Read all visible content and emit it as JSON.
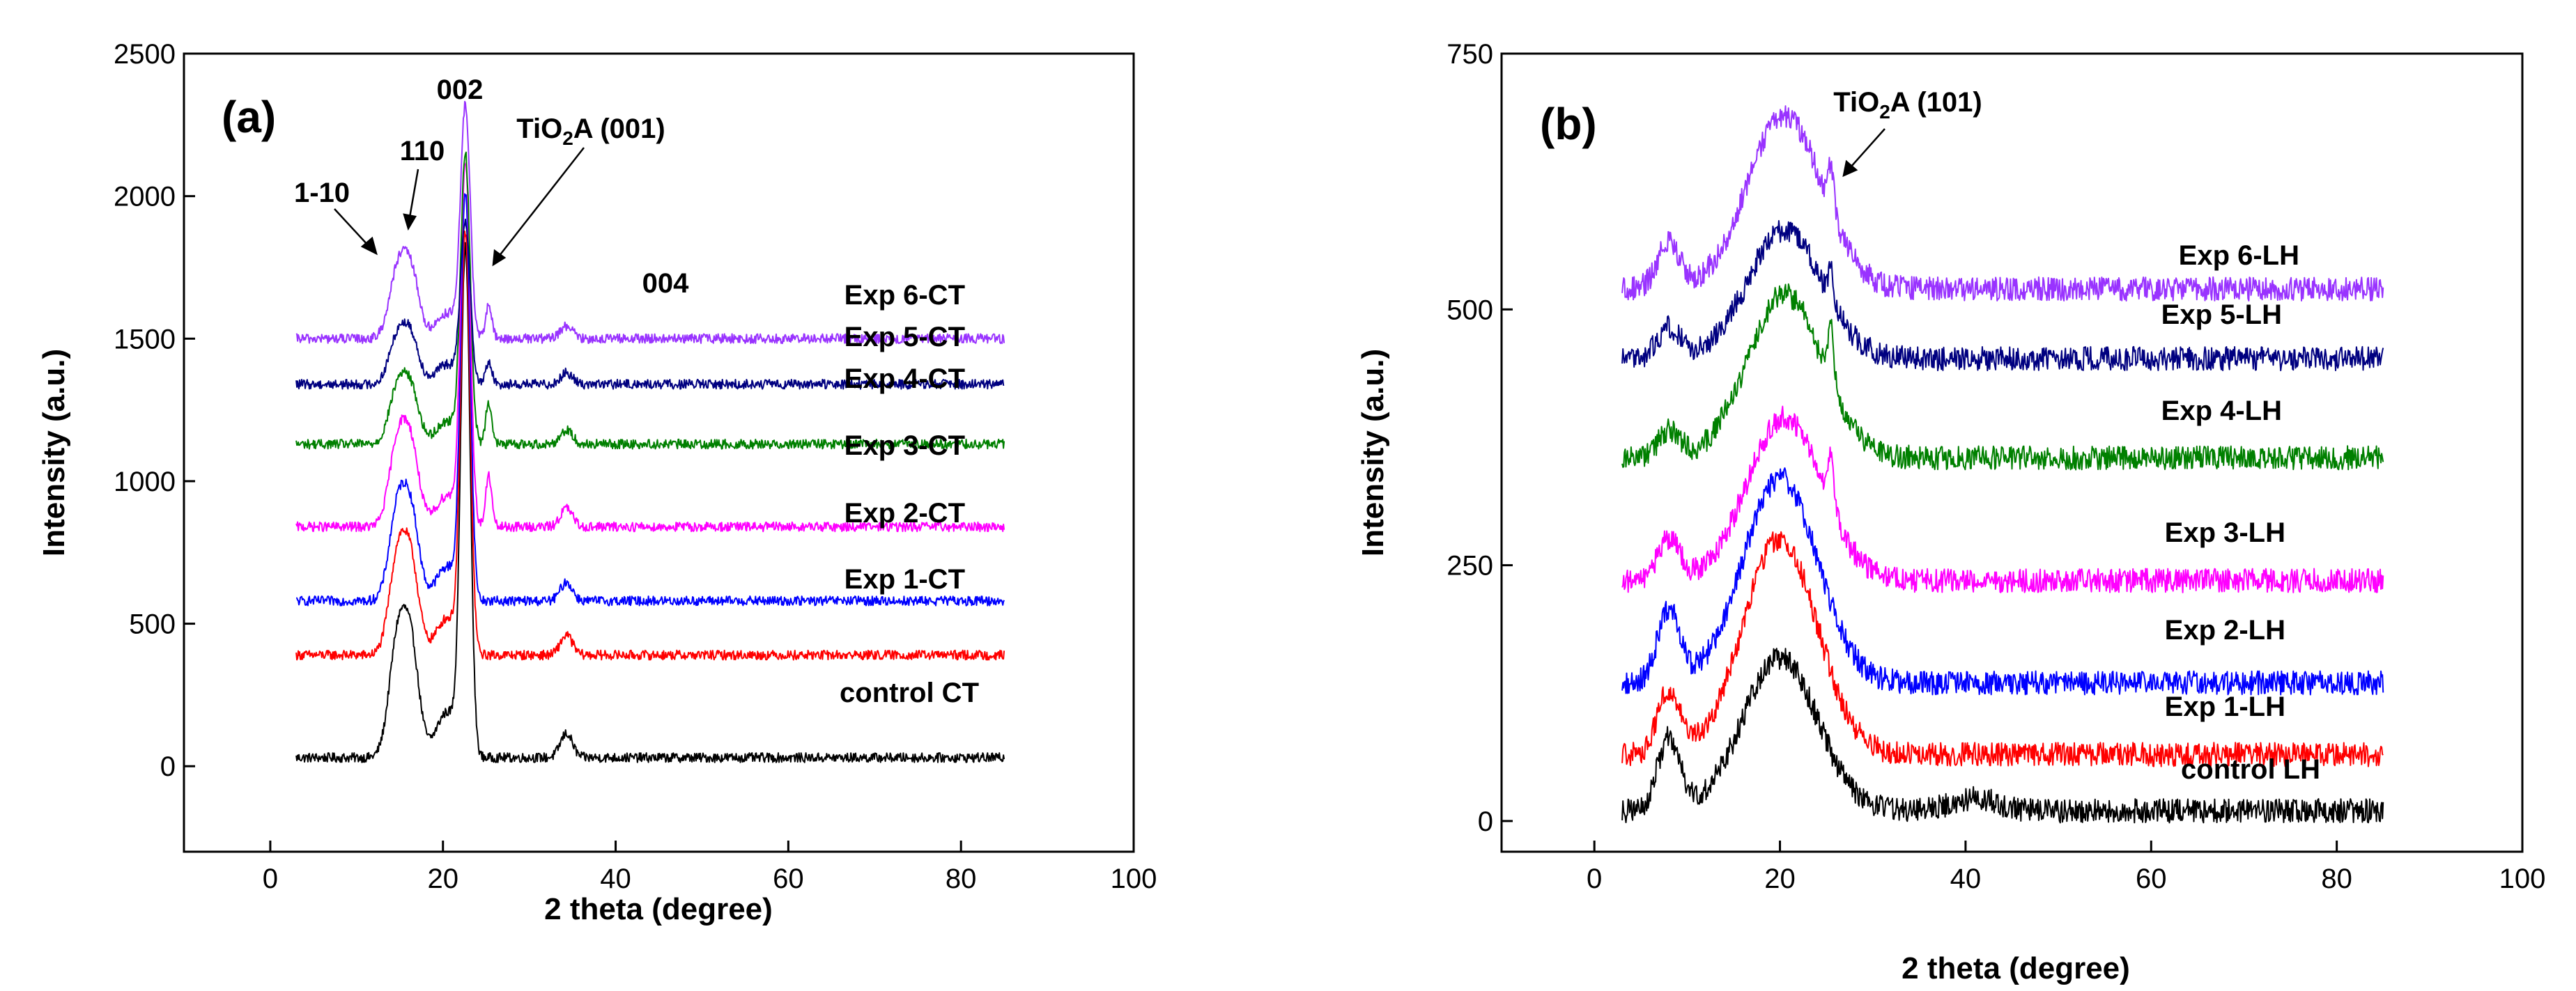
{
  "chart_data": [
    {
      "type": "line",
      "panel": "(a)",
      "xlabel": "2 theta (degree)",
      "ylabel": "Intensity (a.u.)",
      "xlim": [
        -10,
        100
      ],
      "ylim": [
        -300,
        2500
      ],
      "xticks": [
        0,
        20,
        40,
        60,
        80,
        100
      ],
      "yticks": [
        0,
        500,
        1000,
        1500,
        2000,
        2500
      ],
      "series": [
        {
          "name": "control CT",
          "baseline": 30,
          "color": "#000000",
          "peaks": [
            [
              14.8,
              1.0,
              420
            ],
            [
              16.4,
              0.9,
              330
            ],
            [
              20.5,
              1.3,
              160
            ],
            [
              22.6,
              0.55,
              1750
            ],
            [
              34.3,
              0.7,
              85
            ]
          ]
        },
        {
          "name": "Exp 1-CT",
          "baseline": 390,
          "color": "#ff0000",
          "peaks": [
            [
              14.8,
              1.0,
              350
            ],
            [
              16.4,
              0.9,
              270
            ],
            [
              20.5,
              1.3,
              130
            ],
            [
              22.6,
              0.55,
              1450
            ],
            [
              34.3,
              0.7,
              70
            ]
          ]
        },
        {
          "name": "Exp 2-CT",
          "baseline": 580,
          "color": "#0000ff",
          "peaks": [
            [
              14.8,
              1.0,
              330
            ],
            [
              16.4,
              0.9,
              260
            ],
            [
              20.5,
              1.3,
              120
            ],
            [
              22.6,
              0.55,
              1400
            ],
            [
              34.3,
              0.7,
              65
            ]
          ]
        },
        {
          "name": "Exp 3-CT",
          "baseline": 840,
          "color": "#ff00ff",
          "peaks": [
            [
              14.8,
              1.0,
              300
            ],
            [
              16.4,
              0.9,
              240
            ],
            [
              20.5,
              1.3,
              110
            ],
            [
              22.6,
              0.55,
              1250
            ],
            [
              25.3,
              0.35,
              180
            ],
            [
              34.3,
              0.7,
              65
            ]
          ]
        },
        {
          "name": "Exp 4-CT",
          "baseline": 1130,
          "color": "#008000",
          "peaks": [
            [
              14.8,
              1.0,
              200
            ],
            [
              16.4,
              0.9,
              160
            ],
            [
              20.5,
              1.3,
              80
            ],
            [
              22.6,
              0.55,
              1000
            ],
            [
              25.3,
              0.35,
              150
            ],
            [
              34.3,
              0.7,
              50
            ]
          ]
        },
        {
          "name": "Exp 5-CT",
          "baseline": 1340,
          "color": "#000080",
          "peaks": [
            [
              14.8,
              1.0,
              170
            ],
            [
              16.4,
              0.9,
              140
            ],
            [
              20.5,
              1.3,
              70
            ],
            [
              22.6,
              0.55,
              560
            ],
            [
              25.3,
              0.35,
              80
            ],
            [
              34.3,
              0.7,
              40
            ]
          ]
        },
        {
          "name": "Exp 6-CT",
          "baseline": 1500,
          "color": "#9933ff",
          "peaks": [
            [
              14.8,
              1.0,
              240
            ],
            [
              16.4,
              0.9,
              200
            ],
            [
              20.5,
              1.3,
              90
            ],
            [
              22.6,
              0.55,
              800
            ],
            [
              25.3,
              0.35,
              120
            ],
            [
              34.3,
              0.7,
              45
            ]
          ]
        }
      ],
      "annotations": [
        "1-10",
        "110",
        "002",
        "TiO",
        "2",
        "A (001)",
        "004"
      ]
    },
    {
      "type": "line",
      "panel": "(b)",
      "xlabel": "2 theta (degree)",
      "ylabel": "Intensity (a.u.)",
      "xlim": [
        -10,
        100
      ],
      "ylim": [
        -30,
        750
      ],
      "xticks": [
        0,
        20,
        40,
        60,
        80,
        100
      ],
      "yticks": [
        0,
        250,
        500,
        750
      ],
      "series": [
        {
          "name": "control LH",
          "baseline": 10,
          "color": "#000000",
          "peaks": [
            [
              8.0,
              1.2,
              70
            ],
            [
              20.0,
              4.0,
              150
            ],
            [
              41.0,
              2.5,
              12
            ]
          ]
        },
        {
          "name": "Exp 1-LH",
          "baseline": 65,
          "color": "#ff0000",
          "peaks": [
            [
              8.0,
              1.2,
              60
            ],
            [
              20.0,
              4.0,
              210
            ]
          ]
        },
        {
          "name": "Exp 2-LH",
          "baseline": 135,
          "color": "#0000ff",
          "peaks": [
            [
              8.0,
              1.2,
              70
            ],
            [
              20.0,
              4.0,
              200
            ]
          ]
        },
        {
          "name": "Exp 3-LH",
          "baseline": 235,
          "color": "#ff00ff",
          "peaks": [
            [
              8.0,
              1.2,
              40
            ],
            [
              20.5,
              4.0,
              160
            ],
            [
              25.5,
              0.3,
              50
            ]
          ]
        },
        {
          "name": "Exp 4-LH",
          "baseline": 355,
          "color": "#008000",
          "peaks": [
            [
              8.0,
              1.2,
              25
            ],
            [
              20.5,
              4.0,
              160
            ],
            [
              25.5,
              0.3,
              60
            ]
          ]
        },
        {
          "name": "Exp 5-LH",
          "baseline": 452,
          "color": "#000080",
          "peaks": [
            [
              8.0,
              1.2,
              30
            ],
            [
              20.5,
              4.0,
              125
            ],
            [
              25.5,
              0.3,
              35
            ]
          ]
        },
        {
          "name": "Exp 6-LH",
          "baseline": 520,
          "color": "#9933ff",
          "peaks": [
            [
              8.0,
              1.2,
              45
            ],
            [
              20.5,
              4.0,
              170
            ],
            [
              25.5,
              0.3,
              45
            ]
          ]
        }
      ],
      "annotations": [
        "TiO",
        "2",
        "A (101)"
      ]
    }
  ]
}
